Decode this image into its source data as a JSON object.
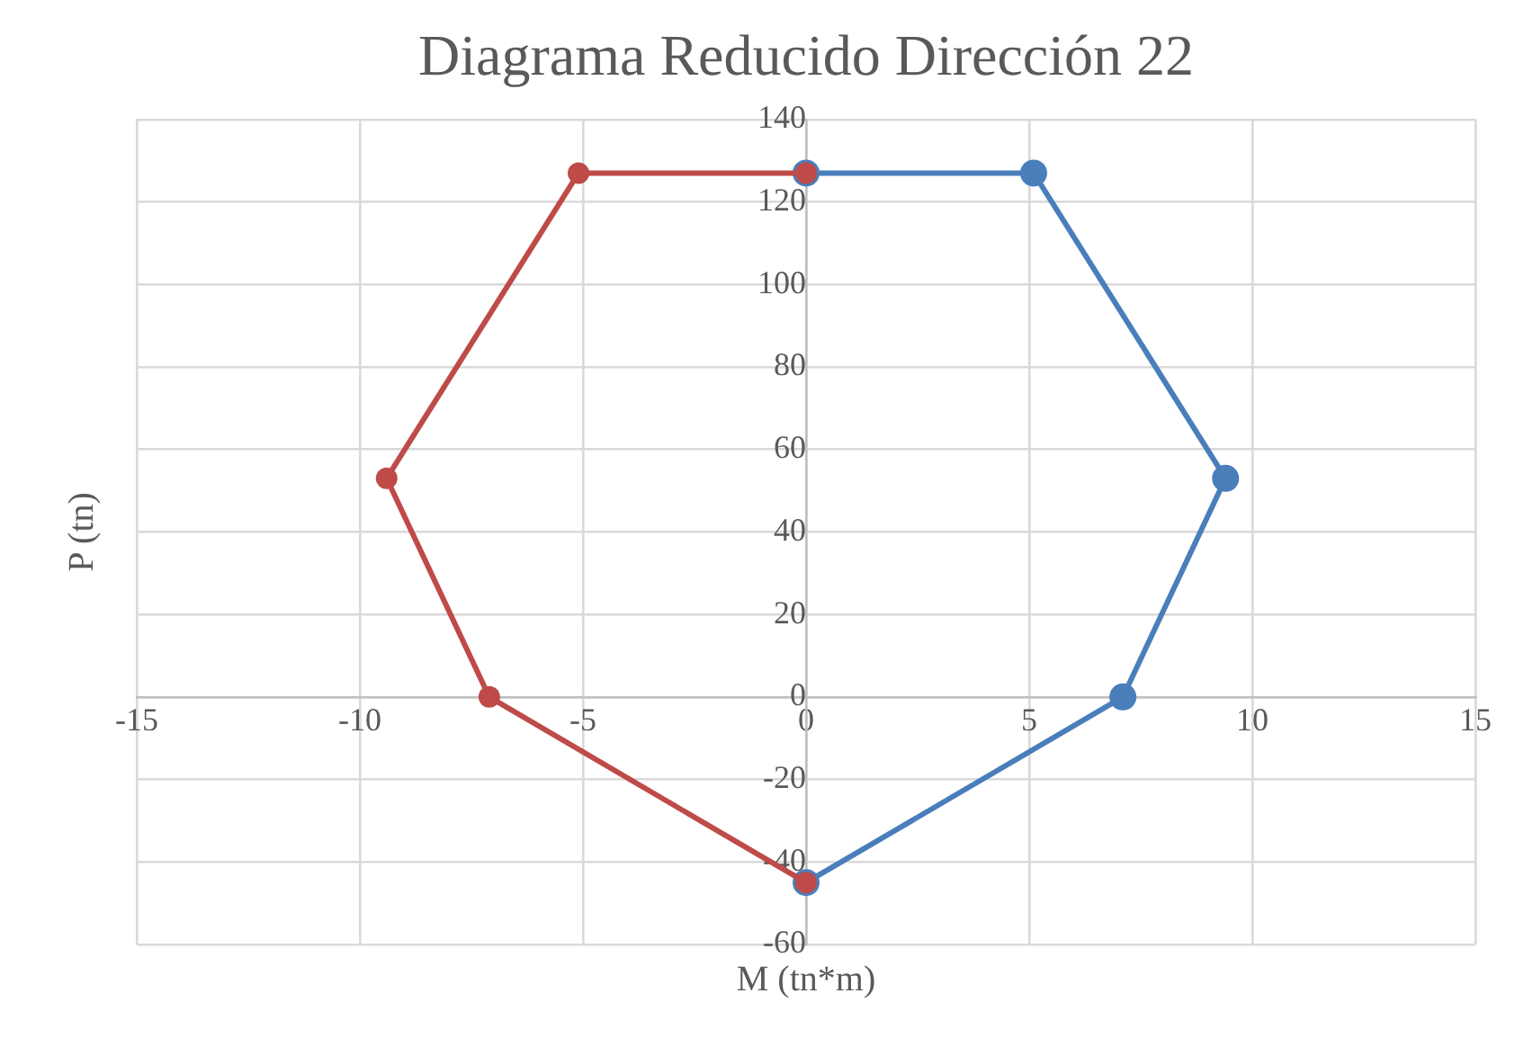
{
  "chart_data": {
    "type": "line",
    "title": "Diagrama Reducido Dirección 22",
    "xlabel": "M (tn*m)",
    "ylabel": "P (tn)",
    "series": [
      {
        "color": "#4a7ebb",
        "x": [
          0,
          5.1,
          9.4,
          7.1,
          0
        ],
        "values": [
          127,
          127,
          53,
          0,
          -45
        ]
      },
      {
        "color": "#be4b48",
        "x": [
          0,
          -5.1,
          -9.4,
          -7.1,
          0
        ],
        "values": [
          127,
          127,
          53,
          0,
          -45
        ]
      }
    ],
    "xlim": [
      -15,
      15
    ],
    "xticks": [
      -15,
      -10,
      -5,
      0,
      5,
      10,
      15
    ],
    "ylim": [
      -60,
      140
    ],
    "yticks": [
      -60,
      -40,
      -20,
      0,
      20,
      40,
      60,
      80,
      100,
      120,
      140
    ],
    "grid": true,
    "legend": false,
    "marker": "circle",
    "line_style": "solid"
  }
}
